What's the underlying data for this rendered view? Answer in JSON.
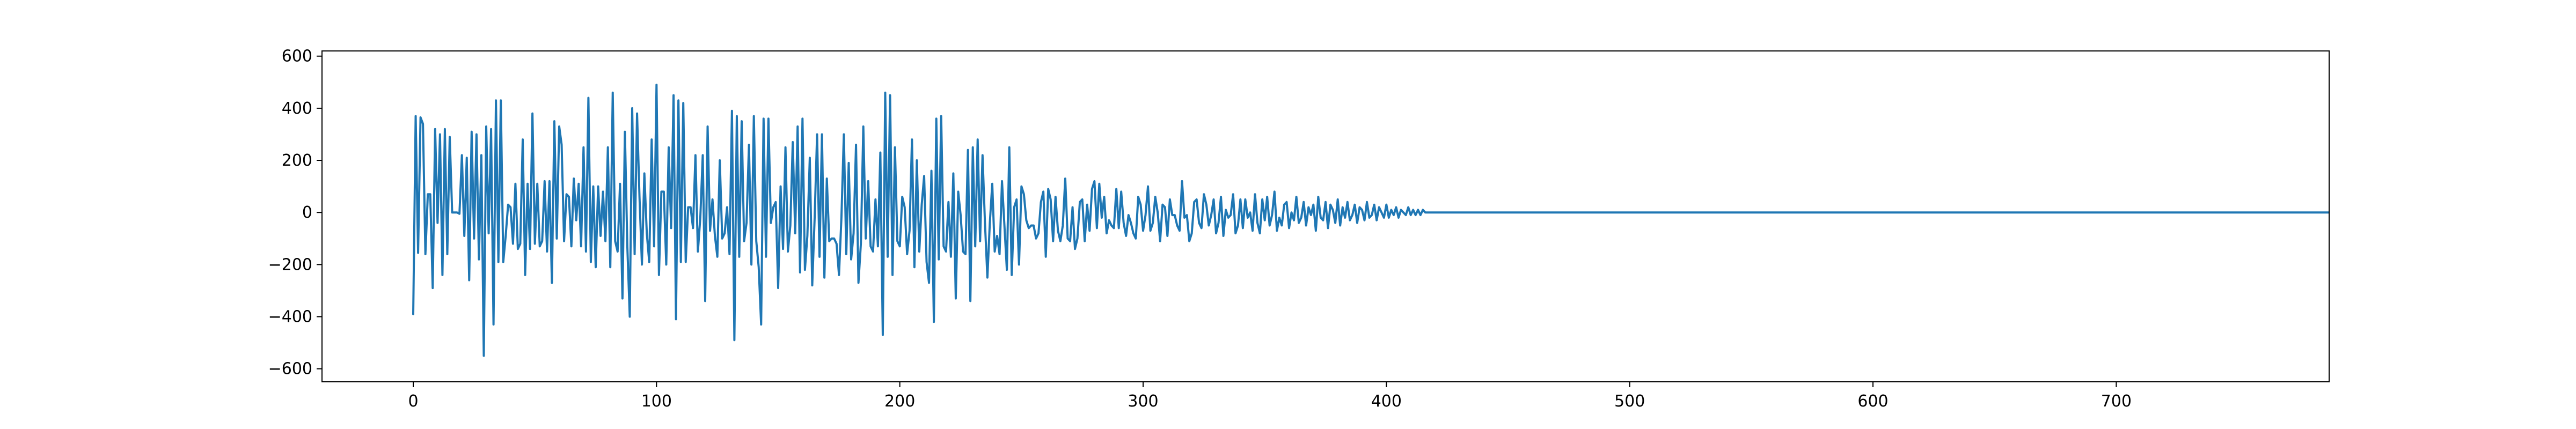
{
  "chart_data": {
    "type": "line",
    "title": "",
    "xlabel": "",
    "ylabel": "",
    "xlim": [
      -37.5,
      787.5
    ],
    "ylim": [
      -650,
      620
    ],
    "x_ticks": [
      0,
      100,
      200,
      300,
      400,
      500,
      600,
      700
    ],
    "y_ticks": [
      -600,
      -400,
      -200,
      0,
      200,
      400,
      600
    ],
    "grid": false,
    "legend": "none",
    "series_color": "#1f77b4",
    "series": [
      {
        "x_start": 0,
        "x_step": 1,
        "values": [
          -390,
          370,
          -155,
          365,
          340,
          -160,
          70,
          70,
          -290,
          320,
          -40,
          300,
          -240,
          320,
          -160,
          290,
          0,
          0,
          0,
          -5,
          220,
          -90,
          210,
          -260,
          310,
          -100,
          300,
          -180,
          220,
          -550,
          330,
          -80,
          320,
          -430,
          430,
          -190,
          430,
          -190,
          -90,
          30,
          20,
          -120,
          110,
          -140,
          -120,
          280,
          -240,
          110,
          -140,
          380,
          -120,
          110,
          -130,
          -110,
          120,
          -150,
          120,
          -270,
          350,
          -100,
          330,
          260,
          -110,
          70,
          60,
          -130,
          130,
          -30,
          110,
          -130,
          250,
          -150,
          440,
          -190,
          100,
          -210,
          100,
          -90,
          80,
          -110,
          250,
          -210,
          460,
          -110,
          -150,
          110,
          -330,
          310,
          -130,
          -400,
          400,
          -160,
          380,
          60,
          -200,
          150,
          -80,
          -190,
          280,
          -130,
          490,
          -240,
          80,
          80,
          -200,
          250,
          -60,
          450,
          -410,
          430,
          -190,
          420,
          -190,
          20,
          20,
          -60,
          220,
          -150,
          -20,
          220,
          -340,
          330,
          -70,
          50,
          -90,
          -170,
          200,
          -100,
          -80,
          20,
          -160,
          390,
          -490,
          370,
          -170,
          350,
          -110,
          -40,
          260,
          -200,
          370,
          -110,
          -210,
          -430,
          360,
          -170,
          360,
          -40,
          20,
          40,
          -290,
          100,
          -140,
          250,
          -150,
          -50,
          270,
          -80,
          330,
          -230,
          360,
          -220,
          -90,
          210,
          -280,
          -20,
          300,
          -170,
          300,
          -250,
          130,
          -110,
          -100,
          -100,
          -120,
          -240,
          -20,
          300,
          -160,
          190,
          -180,
          -80,
          260,
          -270,
          -120,
          330,
          -100,
          120,
          -130,
          -150,
          50,
          -130,
          230,
          -470,
          460,
          -170,
          450,
          -240,
          250,
          -110,
          -130,
          60,
          20,
          -160,
          -70,
          280,
          -210,
          200,
          -150,
          30,
          140,
          -190,
          -270,
          160,
          -420,
          360,
          -180,
          370,
          -130,
          -150,
          40,
          -170,
          150,
          -330,
          80,
          -10,
          -150,
          -160,
          240,
          -340,
          250,
          -130,
          280,
          -110,
          220,
          -40,
          -250,
          -40,
          110,
          -150,
          -90,
          -160,
          120,
          -50,
          -220,
          250,
          -240,
          20,
          50,
          -200,
          100,
          70,
          -30,
          -60,
          -50,
          -50,
          -100,
          -80,
          40,
          80,
          -170,
          90,
          50,
          -110,
          60,
          -70,
          -110,
          -50,
          130,
          -100,
          -110,
          20,
          -140,
          -100,
          40,
          50,
          -110,
          30,
          -70,
          90,
          120,
          -60,
          110,
          -20,
          60,
          -80,
          -30,
          -50,
          -60,
          90,
          -60,
          80,
          -40,
          -90,
          -10,
          -40,
          -80,
          -100,
          60,
          30,
          -70,
          -10,
          100,
          -70,
          -40,
          60,
          0,
          -110,
          30,
          20,
          -90,
          50,
          -10,
          -10,
          -50,
          -70,
          120,
          -20,
          -10,
          -110,
          -80,
          40,
          50,
          -40,
          -60,
          70,
          30,
          -50,
          -10,
          50,
          -80,
          -40,
          60,
          -90,
          10,
          -20,
          -10,
          70,
          -80,
          -50,
          50,
          -60,
          50,
          -20,
          0,
          -70,
          70,
          -40,
          -80,
          50,
          -30,
          60,
          -50,
          -10,
          80,
          -70,
          -20,
          -50,
          30,
          40,
          -60,
          0,
          -30,
          60,
          -40,
          -20,
          40,
          -50,
          20,
          -10,
          30,
          -70,
          60,
          -20,
          -30,
          40,
          -60,
          30,
          10,
          -40,
          50,
          -50,
          20,
          -20,
          40,
          -30,
          -10,
          30,
          -40,
          20,
          10,
          -30,
          40,
          -20,
          -10,
          30,
          -30,
          20,
          0,
          -20,
          30,
          -20,
          10,
          -10,
          20,
          -20,
          10,
          0,
          -10,
          20,
          -10,
          10,
          -10,
          10,
          -10,
          10,
          0,
          0,
          0,
          0,
          0,
          0,
          0,
          0,
          0,
          0,
          0,
          0,
          0,
          0,
          0,
          0,
          0,
          0,
          0,
          0,
          0,
          0,
          0,
          0,
          0,
          0,
          0,
          0,
          0,
          0,
          0,
          0,
          0,
          0,
          0,
          0,
          0,
          0,
          0,
          0,
          0,
          0,
          0,
          0,
          0,
          0,
          0,
          0,
          0,
          0,
          0,
          0,
          0,
          0,
          0,
          0,
          0,
          0,
          0,
          0,
          0,
          0,
          0,
          0,
          0,
          0,
          0,
          0,
          0,
          0,
          0,
          0,
          0,
          0,
          0,
          0,
          0,
          0,
          0,
          0,
          0,
          0,
          0,
          0,
          0,
          0,
          0,
          0,
          0,
          0,
          0,
          0,
          0,
          0,
          0,
          0,
          0,
          0,
          0,
          0,
          0,
          0,
          0,
          0,
          0,
          0,
          0,
          0,
          0,
          0,
          0,
          0,
          0,
          0,
          0,
          0,
          0,
          0,
          0,
          0,
          0,
          0,
          0,
          0,
          0,
          0,
          0,
          0,
          0,
          0,
          0,
          0,
          0,
          0,
          0,
          0,
          0,
          0,
          0,
          0,
          0,
          0,
          0,
          0,
          0,
          0,
          0,
          0,
          0,
          0,
          0,
          0,
          0,
          0,
          0,
          0,
          0,
          0,
          0,
          0,
          0,
          0,
          0,
          0,
          0,
          0,
          0,
          0,
          0,
          0,
          0,
          0,
          0,
          0,
          0,
          0,
          0,
          0,
          0,
          0,
          0,
          0,
          0,
          0,
          0,
          0,
          0,
          0,
          0,
          0,
          0,
          0,
          0,
          0,
          0,
          0,
          0,
          0,
          0,
          0,
          0,
          0,
          0,
          0,
          0,
          0,
          0,
          0,
          0,
          0,
          0,
          0,
          0,
          0,
          0,
          0,
          0,
          0,
          0,
          0,
          0,
          0,
          0,
          0,
          0,
          0,
          0,
          0,
          0,
          0,
          0,
          0,
          0,
          0,
          0,
          0,
          0,
          0,
          0,
          0,
          0,
          0,
          0,
          0,
          0,
          0,
          0,
          0,
          0,
          0,
          0,
          0,
          0,
          0,
          0,
          0,
          0,
          0,
          0,
          0,
          0,
          0,
          0,
          0,
          0,
          0,
          0,
          0,
          0,
          0,
          0,
          0,
          0,
          0,
          0,
          0,
          0,
          0,
          0,
          0,
          0,
          0,
          0,
          0,
          0,
          0,
          0,
          0,
          0,
          0,
          0,
          0,
          0,
          0,
          0,
          0,
          0,
          0,
          0,
          0,
          0,
          0,
          0,
          0,
          0,
          0,
          0,
          0,
          0,
          0,
          0,
          0,
          0,
          0,
          0,
          0,
          0,
          0,
          0,
          0,
          0,
          0,
          0,
          0,
          0,
          0,
          0,
          0,
          0,
          0,
          0,
          0,
          0,
          0,
          0,
          0,
          0,
          0,
          0,
          0,
          0,
          0,
          0,
          0,
          0,
          0,
          0,
          0,
          0,
          0,
          0,
          0,
          0,
          0,
          0,
          0,
          0,
          0,
          0,
          0,
          0,
          0,
          0,
          0,
          0,
          0,
          0,
          0,
          0,
          0,
          0,
          0,
          0,
          0,
          0,
          0,
          0,
          0,
          0,
          0,
          0,
          0,
          0,
          0,
          0,
          0,
          0,
          0,
          0,
          0,
          0,
          0,
          0,
          0,
          0,
          0,
          0,
          0,
          0,
          0,
          0,
          0,
          0,
          0,
          0,
          0,
          0,
          0,
          0,
          0,
          0,
          0,
          0,
          0,
          0,
          0
        ]
      }
    ]
  }
}
